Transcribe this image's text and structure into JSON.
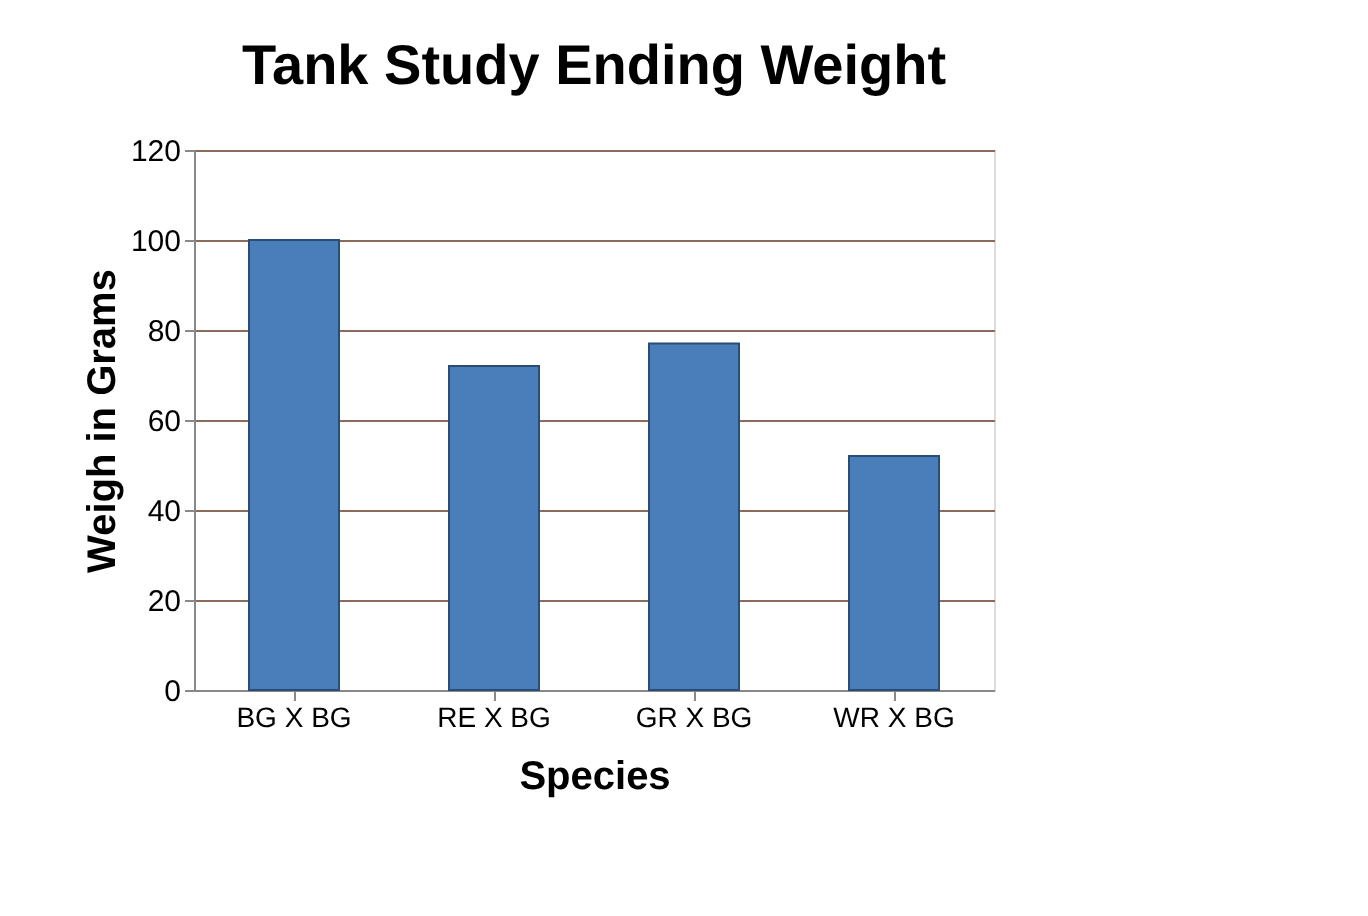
{
  "chart_data": {
    "type": "bar",
    "title": "Tank Study Ending Weight",
    "xlabel": "Species",
    "ylabel": "Weigh in Grams",
    "categories": [
      "BG X BG",
      "RE X BG",
      "GR X BG",
      "WR X BG"
    ],
    "values": [
      100,
      72,
      77,
      52
    ],
    "color": "#4a7ebb",
    "ylim": [
      0,
      120
    ],
    "yticks": [
      0,
      20,
      40,
      60,
      80,
      100,
      120
    ],
    "grid": "y"
  }
}
